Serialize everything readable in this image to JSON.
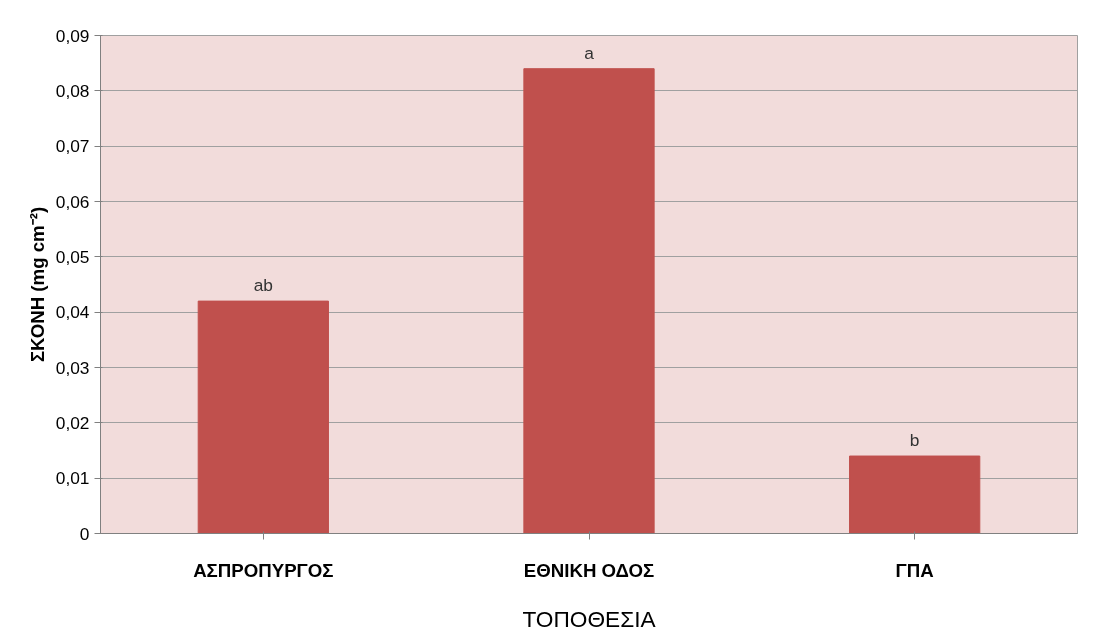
{
  "chart_data": {
    "type": "bar",
    "xlabel": "ΤΟΠΟΘΕΣΙΑ",
    "ylabel": "ΣΚΟΝΗ (mg cm⁻²)",
    "categories": [
      "ΑΣΠΡΟΠΥΡΓΟΣ",
      "ΕΘΝΙΚΗ ΟΔΟΣ",
      "ΓΠΑ"
    ],
    "values": [
      0.042,
      0.084,
      0.014
    ],
    "color": "#c0504d",
    "ylim": [
      0,
      0.09
    ],
    "yticks": [
      {
        "value": 0,
        "label": "0"
      },
      {
        "value": 0.01,
        "label": "0,01"
      },
      {
        "value": 0.02,
        "label": "0,02"
      },
      {
        "value": 0.03,
        "label": "0,03"
      },
      {
        "value": 0.04,
        "label": "0,04"
      },
      {
        "value": 0.05,
        "label": "0,05"
      },
      {
        "value": 0.06,
        "label": "0,06"
      },
      {
        "value": 0.07,
        "label": "0,07"
      },
      {
        "value": 0.08,
        "label": "0,08"
      },
      {
        "value": 0.09,
        "label": "0,09"
      }
    ],
    "grid": "y",
    "annotations": [
      {
        "text": "ab",
        "x": "ΑΣΠΡΟΠΥΡΓΟΣ",
        "y": 0.042
      },
      {
        "text": "a",
        "x": "ΕΘΝΙΚΗ ΟΔΟΣ",
        "y": 0.084
      },
      {
        "text": "b",
        "x": "ΓΠΑ",
        "y": 0.014
      }
    ]
  }
}
